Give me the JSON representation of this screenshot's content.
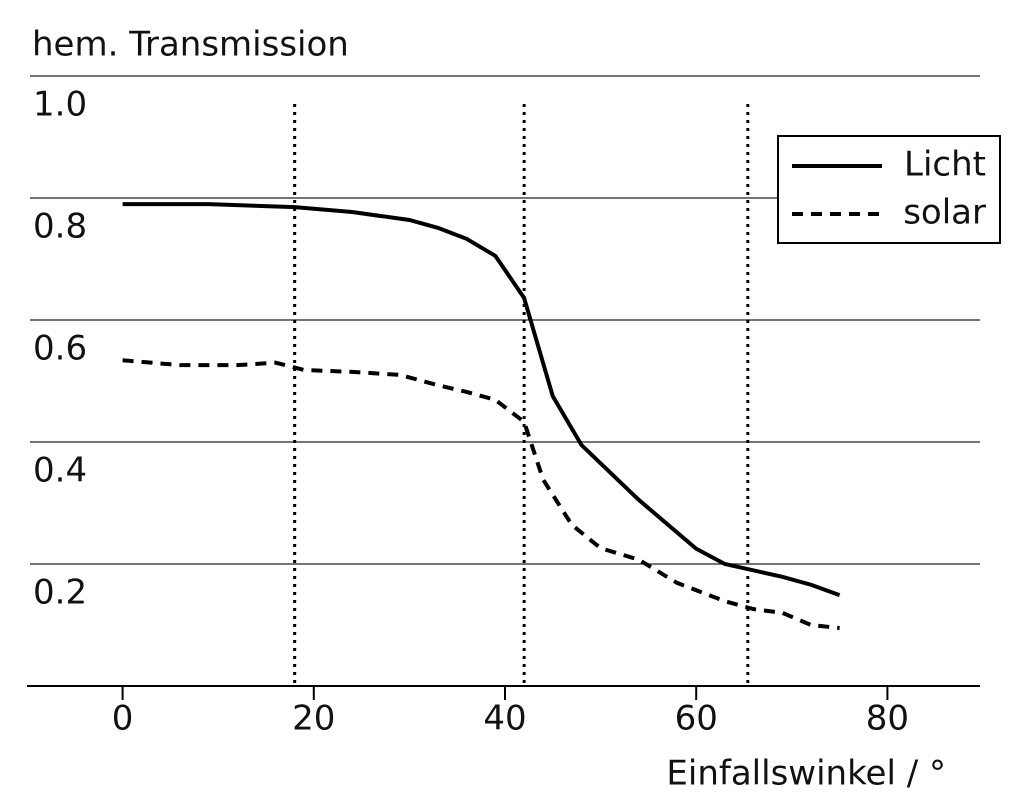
{
  "chart_data": {
    "type": "line",
    "y_label": "hem. Transmission",
    "x_label": "Einfallswinkel / °",
    "xlim": [
      -10,
      90
    ],
    "xticks": [
      0,
      20,
      40,
      60,
      80
    ],
    "ylim": [
      0,
      1
    ],
    "yticks": [
      0.2,
      0.4,
      0.6,
      0.8,
      {
        "value": 1,
        "label": "1.0"
      }
    ],
    "grid": true,
    "vlines": [
      18,
      42,
      65.4
    ],
    "legend": "upper right",
    "series": [
      {
        "name": "Licht",
        "color": "#000000",
        "style": "solid",
        "x": [
          0,
          9,
          18,
          24,
          30,
          33,
          36,
          39,
          42,
          45,
          48,
          54,
          60,
          63,
          69,
          72,
          75
        ],
        "values": [
          0.79,
          0.79,
          0.785,
          0.777,
          0.764,
          0.751,
          0.733,
          0.705,
          0.636,
          0.475,
          0.395,
          0.305,
          0.225,
          0.2,
          0.179,
          0.166,
          0.149
        ]
      },
      {
        "name": "solar",
        "color": "#000000",
        "style": "dashed",
        "x": [
          0,
          6,
          12,
          16,
          19,
          24,
          29,
          33,
          36,
          39,
          42,
          44,
          47,
          50,
          54,
          58,
          63,
          66,
          69,
          72,
          75
        ],
        "values": [
          0.534,
          0.526,
          0.526,
          0.53,
          0.518,
          0.515,
          0.51,
          0.493,
          0.482,
          0.469,
          0.433,
          0.338,
          0.264,
          0.226,
          0.207,
          0.169,
          0.139,
          0.126,
          0.12,
          0.1,
          0.095
        ]
      }
    ]
  }
}
